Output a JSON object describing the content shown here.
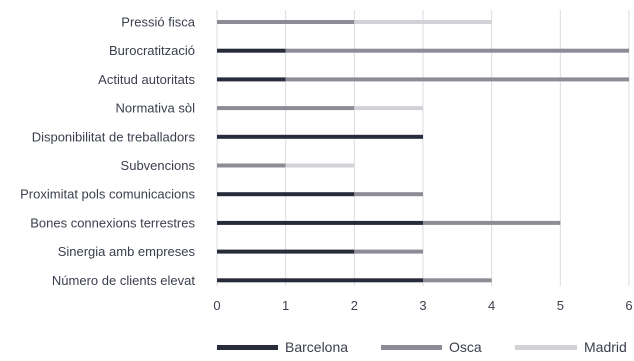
{
  "chart_data": {
    "type": "bar",
    "orientation": "horizontal",
    "stacked": true,
    "categories": [
      "Pressió fisca",
      "Burocratització",
      "Actitud autoritats",
      "Normativa sòl",
      "Disponibilitat de treballadors",
      "Subvencions",
      "Proximitat pols comunicacions",
      "Bones connexions terrestres",
      "Sinergia amb empreses",
      "Número de clients elevat"
    ],
    "series": [
      {
        "name": "Barcelona",
        "color": "#272b3a",
        "values": [
          0,
          1,
          1,
          0,
          3,
          0,
          2,
          3,
          2,
          3
        ]
      },
      {
        "name": "Osca",
        "color": "#8c8c96",
        "values": [
          2,
          5,
          5,
          2,
          0,
          1,
          1,
          2,
          1,
          1
        ]
      },
      {
        "name": "Madrid",
        "color": "#d2d2d6",
        "values": [
          2,
          0,
          0,
          1,
          0,
          1,
          0,
          0,
          0,
          0
        ]
      }
    ],
    "x_ticks": [
      0,
      1,
      2,
      3,
      4,
      5,
      6
    ],
    "xlim": [
      0,
      6
    ],
    "grid": "vertical",
    "legend_position": "bottom",
    "title": "",
    "xlabel": "",
    "ylabel": ""
  }
}
